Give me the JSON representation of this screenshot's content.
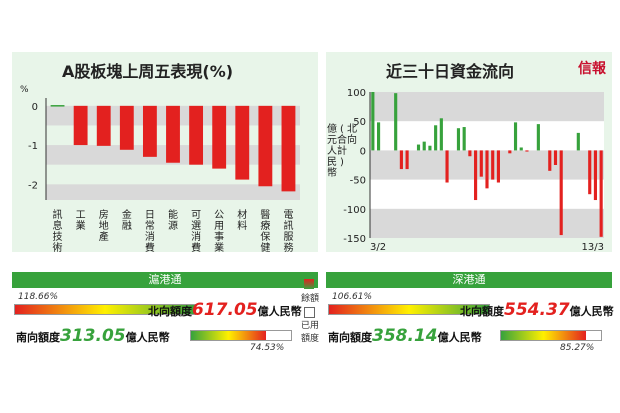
{
  "left_title": "A股板塊上周五表現(%)",
  "right_title": "近三十日資金流向",
  "logo": "信報",
  "chart_data": [
    {
      "type": "bar",
      "ylabel": "%",
      "ylim": [
        -2.4,
        0.2
      ],
      "yticks": [
        "0",
        "-1",
        "-2"
      ],
      "categories": [
        "訊息技術",
        "工業",
        "房地產",
        "金融",
        "日常消費",
        "能源",
        "可選消費",
        "公用事業",
        "材料",
        "醫療保健",
        "電訊服務"
      ],
      "values": [
        0.02,
        -1.0,
        -1.02,
        -1.12,
        -1.3,
        -1.45,
        -1.5,
        -1.6,
        -1.88,
        -2.05,
        -2.18
      ]
    },
    {
      "type": "bar",
      "ylabel": "億元人民幣(合計)北向",
      "ylim": [
        -150,
        100
      ],
      "yticks": [
        "100",
        "50",
        "0",
        "-50",
        "-100",
        "-150"
      ],
      "x_start": "3/2 2020",
      "x_end": "13/3 2020",
      "values": [
        100,
        48,
        0,
        0,
        98,
        -32,
        -32,
        0,
        10,
        15,
        8,
        43,
        55,
        -55,
        0,
        38,
        40,
        -10,
        -85,
        -45,
        -65,
        -50,
        -55,
        0,
        -5,
        48,
        5,
        -2,
        0,
        45,
        0,
        -35,
        -25,
        -145,
        0,
        0,
        30,
        0,
        -75,
        -85,
        -148
      ]
    }
  ],
  "hk_sh": {
    "label": "滬港通",
    "north_pct": "118.66%",
    "north_text": "北向額度",
    "north_amount": "617.05",
    "unit": "億人民幣",
    "south_text": "南向額度",
    "south_amount": "313.05",
    "south_pct": "74.53%"
  },
  "hk_sz": {
    "label": "深港通",
    "north_pct": "106.61%",
    "north_text": "北向額度",
    "north_amount": "554.37",
    "unit": "億人民幣",
    "south_text": "南向額度",
    "south_amount": "358.14",
    "south_pct": "85.27%"
  },
  "legend": {
    "balance": "餘額",
    "used": "已用額度"
  },
  "colors": {
    "red": "#e3211f",
    "green": "#37a23c",
    "band": "#d9d9d9"
  }
}
